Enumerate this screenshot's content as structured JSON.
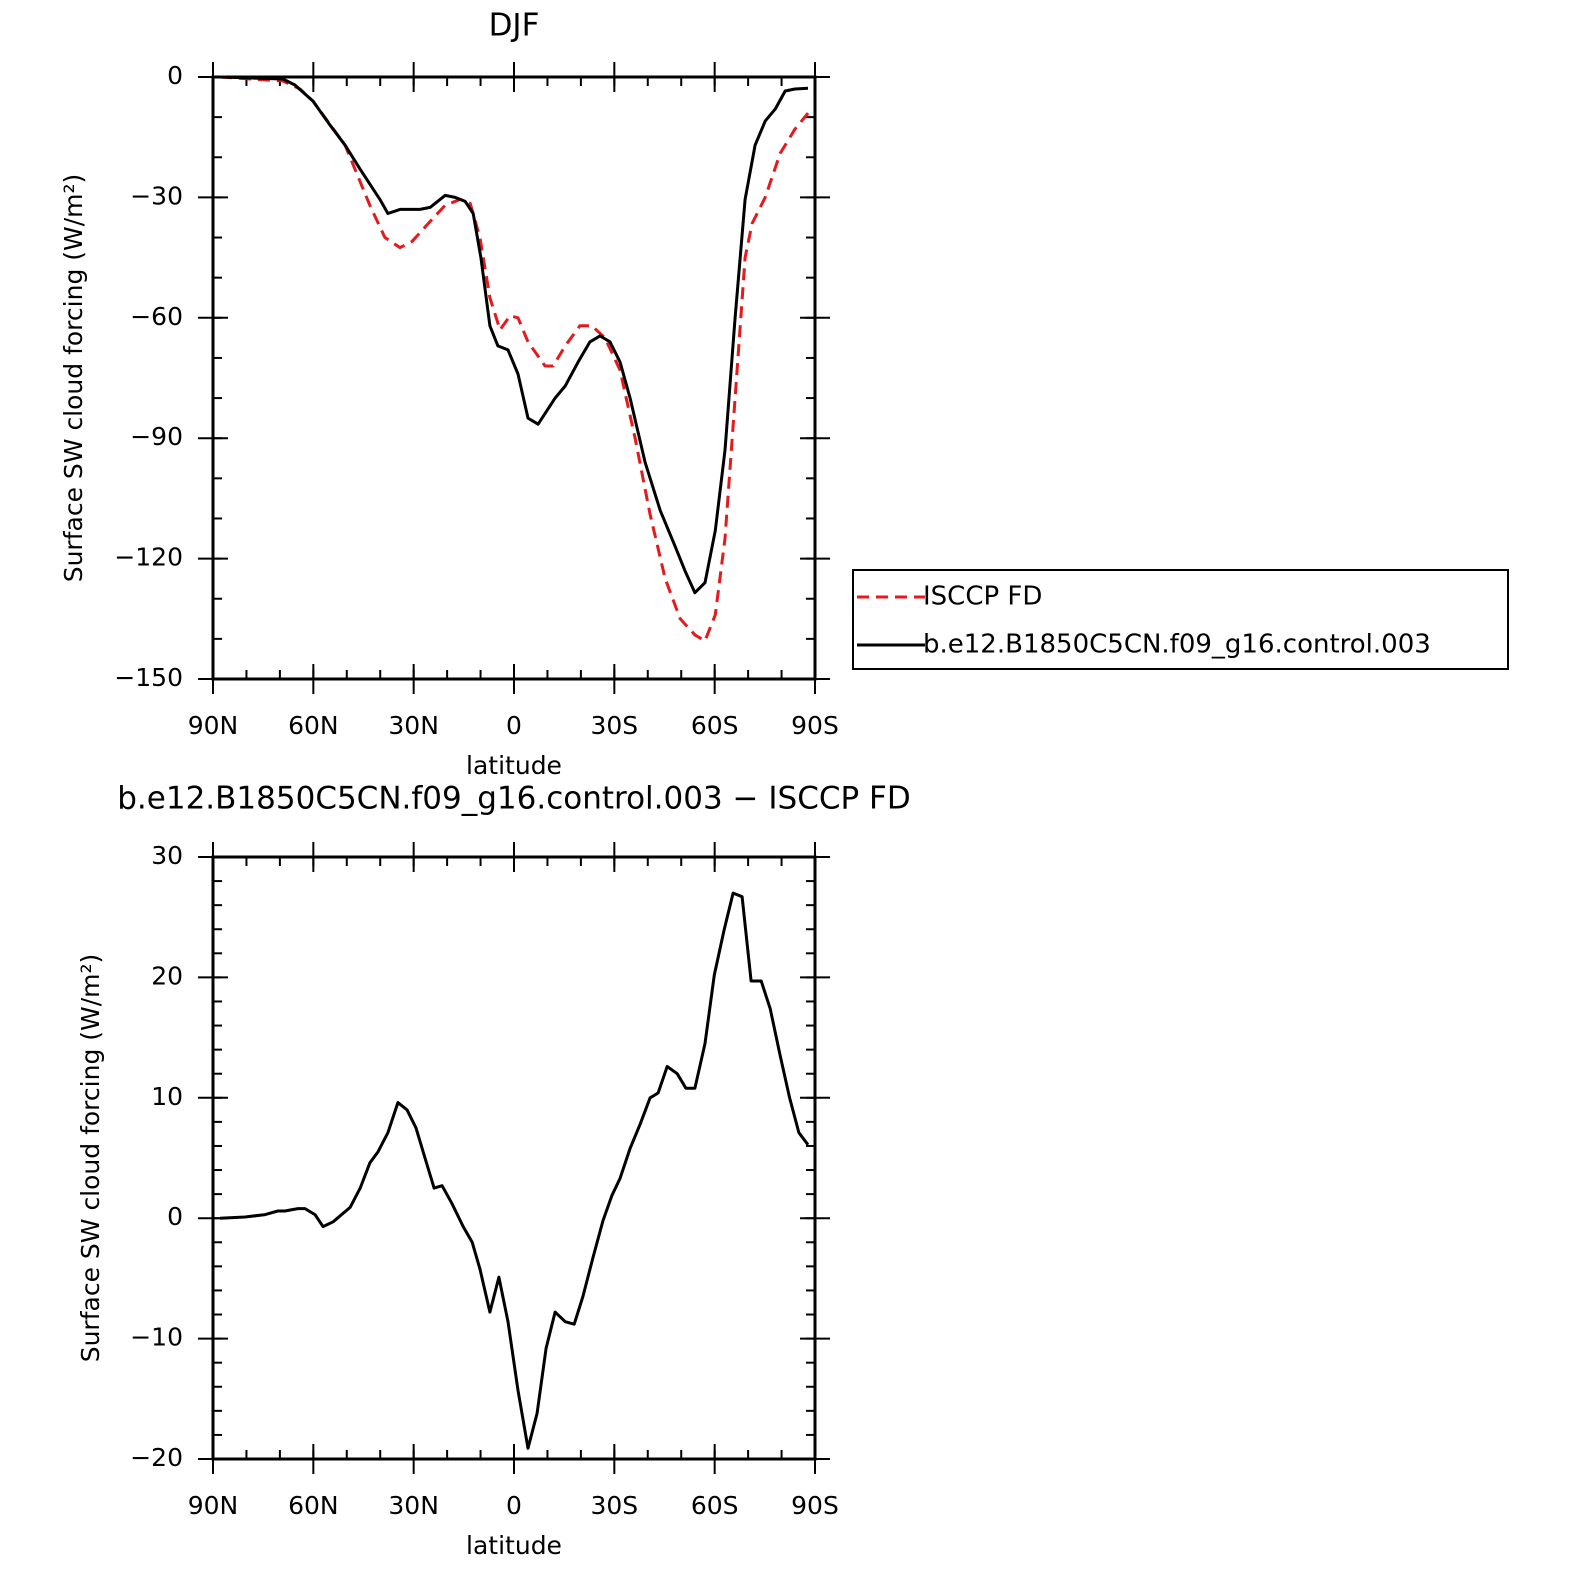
{
  "chart_data": [
    {
      "type": "line",
      "title": "DJF",
      "x_label": "latitude",
      "y_label": "Surface SW cloud forcing (W/m²)",
      "xlim": [
        90,
        -90
      ],
      "xticks": [
        {
          "value": 90,
          "label": "90N"
        },
        {
          "value": 60,
          "label": "60N"
        },
        {
          "value": 30,
          "label": "30N"
        },
        0,
        {
          "value": -30,
          "label": "30S"
        },
        {
          "value": -60,
          "label": "60S"
        },
        {
          "value": -90,
          "label": "90S"
        }
      ],
      "x_minor_step": 10,
      "ylim": [
        -150,
        0
      ],
      "yticks": [
        0,
        {
          "value": -30,
          "label": "−30"
        },
        {
          "value": -60,
          "label": "−60"
        },
        {
          "value": -90,
          "label": "−90"
        },
        {
          "value": -120,
          "label": "−120"
        },
        {
          "value": -150,
          "label": "−150"
        }
      ],
      "y_minor_step": 10,
      "legend": "right",
      "series": [
        {
          "name": "ISCCP FD",
          "color": "#e41a1c",
          "dashed": true,
          "x": [
            87.9,
            69.1,
            64.0,
            60.1,
            50.5,
            43.1,
            38.6,
            34.1,
            30.5,
            25.1,
            20.6,
            16.1,
            13.1,
            10.2,
            7.2,
            4.2,
            1.2,
            -1.2,
            -4.2,
            -9.3,
            -11.7,
            -15.3,
            -19.7,
            -23.3,
            -27.2,
            -31.7,
            -36.2,
            -40.7,
            -45.2,
            -49.7,
            -54.1,
            -57.1,
            -60.2,
            -63.1,
            -66.1,
            -69.1,
            -71.2,
            -75.1,
            -79.6,
            -84.0,
            -87.9
          ],
          "values": [
            0,
            -1,
            -3,
            -6,
            -17,
            -32,
            -40,
            -42.5,
            -41,
            -36,
            -32,
            -30.5,
            -31.5,
            -40,
            -55,
            -63,
            -59.5,
            -60,
            -66,
            -72,
            -72,
            -67,
            -62,
            -62,
            -65,
            -73,
            -90,
            -109,
            -125,
            -135,
            -139,
            -140.5,
            -134,
            -115,
            -80,
            -45,
            -36.5,
            -30,
            -19,
            -13,
            -9
          ]
        },
        {
          "name": "b.e12.B1850C5CN.f09_g16.control.003",
          "color": "#000000",
          "dashed": false,
          "x": [
            87.9,
            69.1,
            65.5,
            60.1,
            55.0,
            50.5,
            46.0,
            40.1,
            37.7,
            34.1,
            28.1,
            25.1,
            20.6,
            17.6,
            14.6,
            12.2,
            9.9,
            7.2,
            4.8,
            1.8,
            -1.2,
            -4.2,
            -7.2,
            -12.3,
            -15.3,
            -19.2,
            -22.7,
            -25.7,
            -28.7,
            -31.7,
            -34.7,
            -39.2,
            -43.7,
            -48.2,
            -51.1,
            -54.1,
            -57.1,
            -60.2,
            -63.1,
            -66.1,
            -69.1,
            -72.1,
            -75.1,
            -78.1,
            -81.1,
            -84.0,
            -87.9
          ],
          "values": [
            0,
            -0.5,
            -2,
            -6,
            -12,
            -17,
            -23,
            -30.5,
            -34,
            -33,
            -33,
            -32.5,
            -29.5,
            -30,
            -31,
            -34,
            -45,
            -62,
            -67,
            -68,
            -74,
            -85,
            -86.5,
            -80,
            -77,
            -71,
            -66,
            -64.5,
            -66,
            -71,
            -80,
            -96,
            -108,
            -117,
            -123,
            -128.5,
            -126,
            -113,
            -93,
            -60,
            -30.5,
            -17,
            -11,
            -8,
            -3.5,
            -3,
            -2.8
          ]
        }
      ]
    },
    {
      "type": "line",
      "title": "b.e12.B1850C5CN.f09_g16.control.003 − ISCCP FD",
      "x_label": "latitude",
      "y_label": "Surface SW cloud forcing (W/m²)",
      "xlim": [
        90,
        -90
      ],
      "xticks": [
        {
          "value": 90,
          "label": "90N"
        },
        {
          "value": 60,
          "label": "60N"
        },
        {
          "value": 30,
          "label": "30N"
        },
        0,
        {
          "value": -30,
          "label": "30S"
        },
        {
          "value": -60,
          "label": "60S"
        },
        {
          "value": -90,
          "label": "90S"
        }
      ],
      "x_minor_step": 10,
      "ylim": [
        -20,
        30
      ],
      "yticks": [
        30,
        20,
        10,
        0,
        {
          "value": -10,
          "label": "−10"
        },
        {
          "value": -20,
          "label": "−20"
        }
      ],
      "y_minor_step": 2,
      "color": "#000000",
      "x": [
        87.9,
        80.4,
        74.4,
        70.6,
        68.5,
        64.6,
        62.5,
        59.5,
        57.1,
        54.1,
        49.0,
        46.0,
        43.1,
        40.7,
        37.7,
        34.7,
        32.0,
        29.3,
        26.6,
        23.9,
        21.5,
        18.5,
        15.2,
        12.5,
        10.2,
        7.2,
        4.5,
        1.8,
        -1.2,
        -4.2,
        -6.9,
        -9.6,
        -12.3,
        -15.3,
        -18.0,
        -20.6,
        -23.6,
        -26.6,
        -29.3,
        -31.7,
        -34.7,
        -37.7,
        -40.7,
        -43.1,
        -45.8,
        -48.8,
        -51.4,
        -54.1,
        -57.1,
        -59.9,
        -62.8,
        -65.5,
        -68.2,
        -70.9,
        -73.9,
        -76.6,
        -79.6,
        -82.4,
        -85.2,
        -87.9
      ],
      "values": [
        0,
        0.1,
        0.3,
        0.6,
        0.6,
        0.8,
        0.8,
        0.3,
        -0.7,
        -0.3,
        0.9,
        2.5,
        4.6,
        5.5,
        7.1,
        9.6,
        9,
        7.5,
        5,
        2.5,
        2.7,
        1.2,
        -0.7,
        -2,
        -4.2,
        -7.8,
        -4.9,
        -8.6,
        -14.3,
        -19.1,
        -16.2,
        -10.8,
        -7.8,
        -8.6,
        -8.8,
        -6.5,
        -3.3,
        -0.2,
        1.9,
        3.3,
        5.8,
        7.8,
        10,
        10.4,
        12.6,
        12,
        10.8,
        10.8,
        14.5,
        20.2,
        23.9,
        27,
        26.7,
        19.7,
        19.7,
        17.4,
        13.5,
        10,
        7.1,
        6.1
      ]
    }
  ]
}
